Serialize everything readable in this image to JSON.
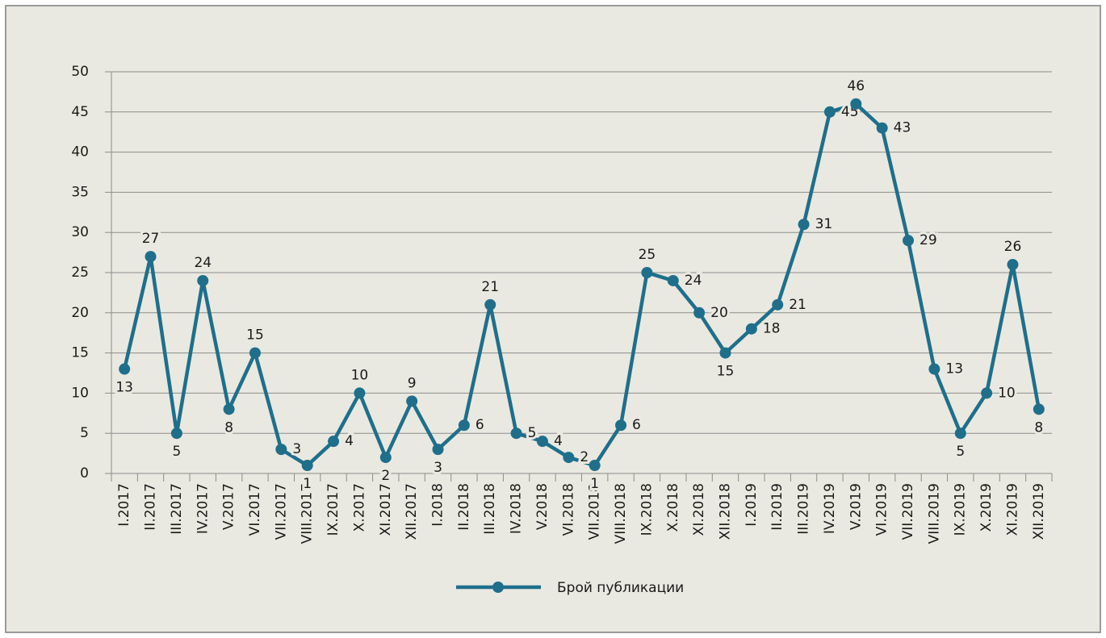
{
  "chart_data": {
    "type": "line",
    "categories": [
      "I.2017",
      "II.2017",
      "III.2017",
      "IV.2017",
      "V.2017",
      "VI.2017",
      "VII.2017",
      "VIII.2017",
      "IX.2017",
      "X.2017",
      "XI.2017",
      "XII.2017",
      "I.2018",
      "II.2018",
      "III.2018",
      "IV.2018",
      "V.2018",
      "VI.2018",
      "VII.2018",
      "VIII.2018",
      "IX.2018",
      "X.2018",
      "XI.2018",
      "XII.2018",
      "I.2019",
      "II.2019",
      "III.2019",
      "IV.2019",
      "V.2019",
      "VI.2019",
      "VII.2019",
      "VIII.2019",
      "IX.2019",
      "X.2019",
      "XI.2019",
      "XII.2019"
    ],
    "series": [
      {
        "name": "Брой публикации",
        "color": "#1f6f8b",
        "values": [
          13,
          27,
          5,
          24,
          8,
          15,
          3,
          1,
          4,
          10,
          2,
          9,
          3,
          6,
          21,
          5,
          4,
          2,
          1,
          6,
          25,
          24,
          20,
          15,
          18,
          21,
          31,
          45,
          46,
          43,
          29,
          13,
          5,
          10,
          26,
          8
        ]
      }
    ],
    "ylim": [
      0,
      50
    ],
    "yticks": [
      0,
      5,
      10,
      15,
      20,
      25,
      30,
      35,
      40,
      45,
      50
    ],
    "grid": true,
    "legend": "bottom"
  }
}
